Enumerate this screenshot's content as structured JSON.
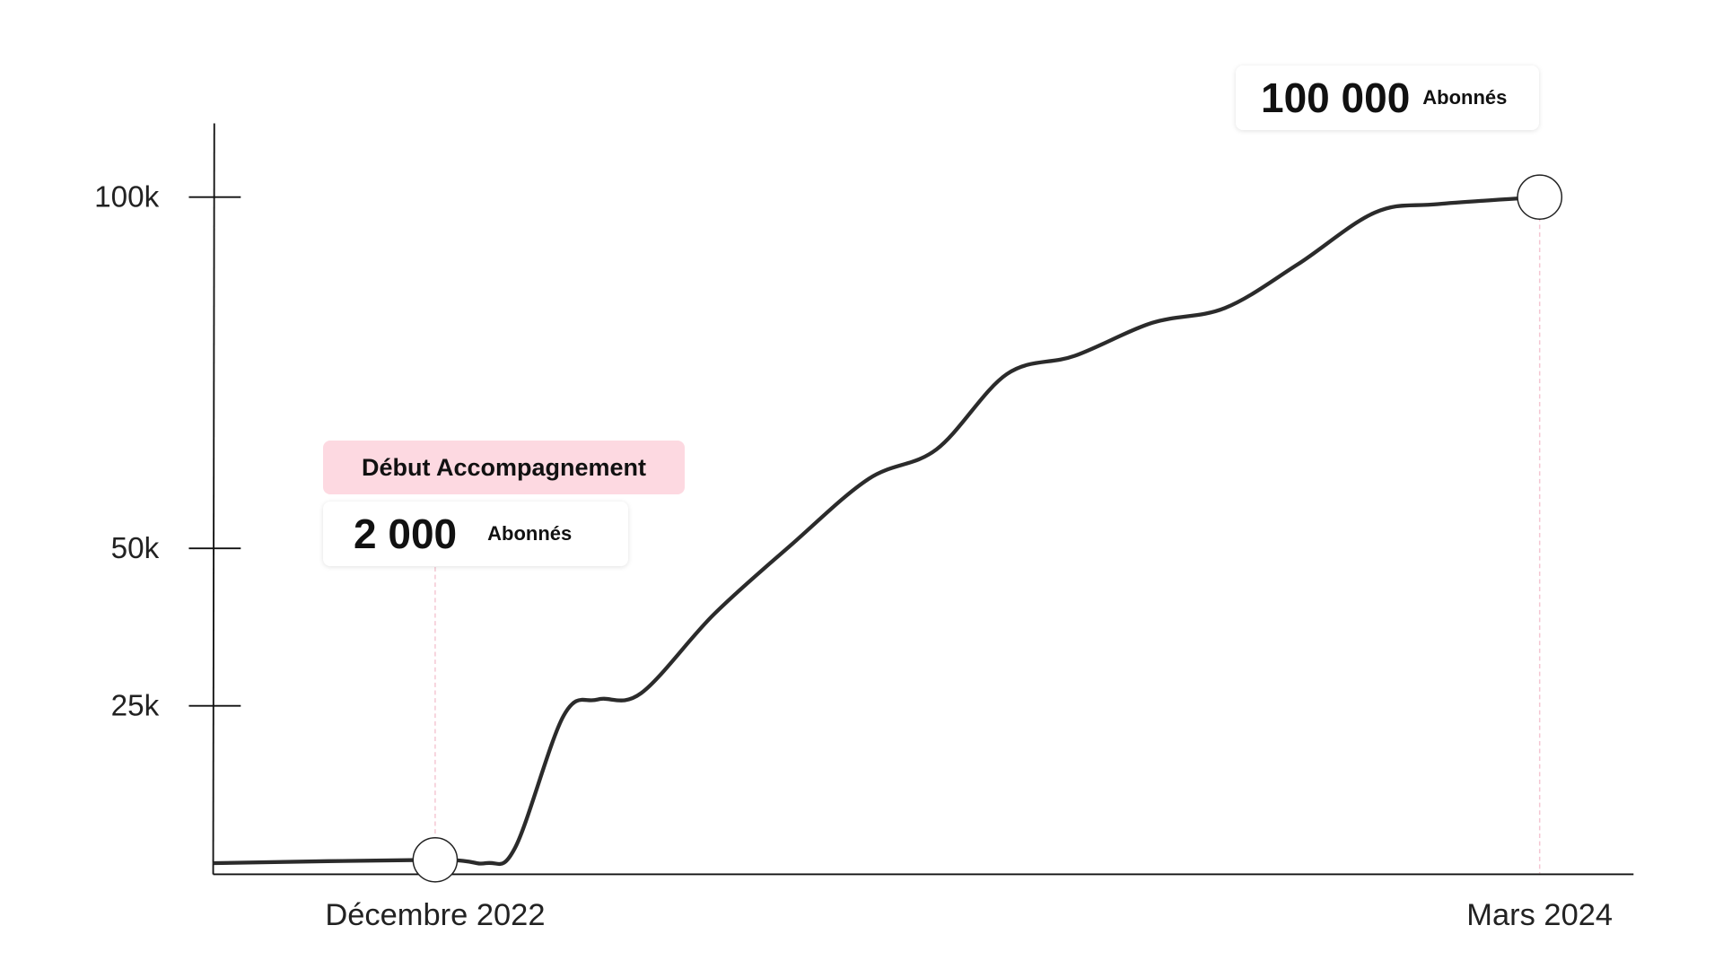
{
  "chart_data": {
    "type": "line",
    "title": "",
    "xlabel": "",
    "ylabel": "",
    "y_ticks": [
      {
        "value": 25000,
        "label": "25k"
      },
      {
        "value": 50000,
        "label": "50k"
      },
      {
        "value": 100000,
        "label": "100k"
      }
    ],
    "x_ticks": [
      {
        "value": "2022-12-01",
        "label": "Décembre 2022"
      },
      {
        "value": "2024-03-01",
        "label": "Mars 2024"
      }
    ],
    "grid": false,
    "line_color": "#2b2b2b",
    "series": [
      {
        "x": [
          "2022-09-01",
          "2022-12-01",
          "2022-12-22",
          "2023-01-03",
          "2023-01-23",
          "2023-02-06",
          "2023-02-24",
          "2023-03-26",
          "2023-04-27",
          "2023-05-29",
          "2023-06-26",
          "2023-07-25",
          "2023-08-22",
          "2023-09-23",
          "2023-10-23",
          "2023-11-22",
          "2023-12-24",
          "2024-01-19",
          "2024-03-01"
        ],
        "y": [
          1500,
          2000,
          1500,
          3800,
          23500,
          26000,
          27000,
          39500,
          50500,
          59900,
          64100,
          74800,
          77400,
          82100,
          84200,
          90400,
          97800,
          99000,
          100000
        ]
      }
    ],
    "annotations": [
      {
        "x": "2022-12-01",
        "tag": "Début Accompagnement",
        "value_text": "2 000",
        "unit": "Abonnés",
        "tag_color": "#fdd9e1"
      },
      {
        "x": "2024-03-01",
        "value_text": "100 000",
        "unit": "Abonnés"
      }
    ],
    "guide_color": "#f4c6d2"
  }
}
